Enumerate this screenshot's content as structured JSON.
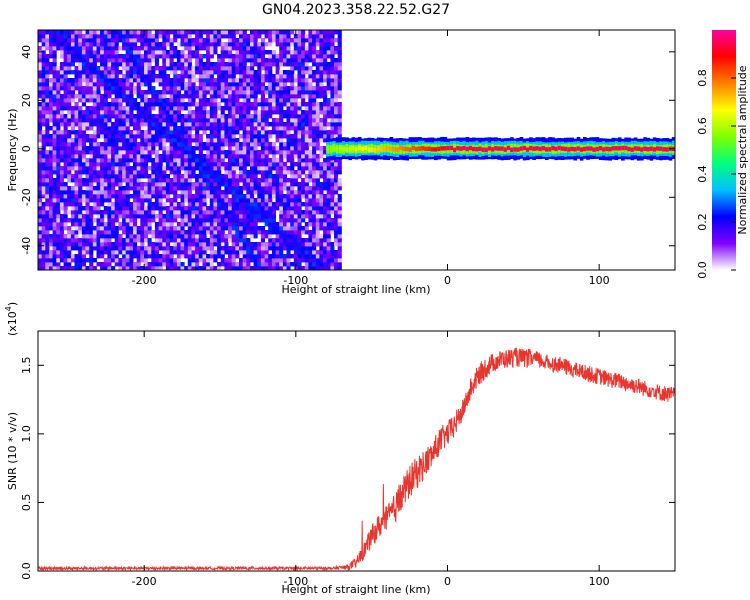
{
  "chart_data": [
    {
      "type": "heatmap",
      "title": "GN04.2023.358.22.52.G27",
      "xlabel": "Height of straight line (km)",
      "ylabel": "Frequency (Hz)",
      "xlim": [
        -270,
        150
      ],
      "ylim": [
        -50,
        49
      ],
      "xticks": [
        -200,
        -100,
        0,
        100
      ],
      "xtick_labels": [
        "-200",
        "-100",
        "0",
        "100"
      ],
      "yticks": [
        -40,
        -20,
        0,
        20,
        40
      ],
      "ytick_labels": [
        "-40",
        "-20",
        "0",
        "20",
        "40"
      ],
      "colorbar": {
        "label": "Normalized spectral amplitude",
        "range": [
          0,
          1
        ],
        "ticks": [
          0.0,
          0.2,
          0.4,
          0.6,
          0.8
        ],
        "tick_labels": [
          "0.0",
          "0.2",
          "0.4",
          "0.6",
          "0.8"
        ],
        "colors": [
          "#ffffff",
          "#8000ff",
          "#0000ff",
          "#00c0ff",
          "#00ff80",
          "#80ff00",
          "#ffff00",
          "#ff8000",
          "#ff0000",
          "#ff00a0"
        ]
      },
      "features": {
        "noise_region_x": [
          -270,
          -70
        ],
        "diagonal_tracks": [
          {
            "x": [
              -265,
              -75
            ],
            "y": [
              49,
              -55
            ]
          },
          {
            "x": [
              -220,
              -120
            ],
            "y": [
              49,
              -55
            ]
          }
        ],
        "dc_band": {
          "x": [
            -80,
            150
          ],
          "y": 0,
          "amplitude_start": 0.55,
          "amplitude_end": 0.95
        }
      }
    },
    {
      "type": "line",
      "title": "",
      "xlabel": "Height of straight line (km)",
      "ylabel": "SNR (10 * v/v)",
      "multiplier_label": "(x10",
      "multiplier_exp": "4",
      "multiplier_close": ")",
      "xlim": [
        -270,
        150
      ],
      "ylim": [
        0,
        1.75
      ],
      "xticks": [
        -200,
        -100,
        0,
        100
      ],
      "xtick_labels": [
        "-200",
        "-100",
        "0",
        "100"
      ],
      "yticks": [
        0,
        0.5,
        1.0,
        1.5
      ],
      "ytick_labels": [
        "0.0",
        "0.5",
        "1.0",
        "1.5"
      ],
      "series": [
        {
          "color": "#e8352e",
          "x": [
            -270,
            -100,
            -75,
            -65,
            -60,
            -55,
            -50,
            -45,
            -40,
            -35,
            -30,
            -25,
            -20,
            -15,
            -10,
            -5,
            0,
            5,
            10,
            15,
            20,
            25,
            30,
            35,
            40,
            45,
            50,
            55,
            60,
            65,
            70,
            75,
            80,
            85,
            90,
            95,
            100,
            105,
            110,
            115,
            120,
            125,
            130,
            135,
            140,
            145,
            150
          ],
          "y": [
            0.02,
            0.02,
            0.02,
            0.03,
            0.06,
            0.15,
            0.25,
            0.33,
            0.38,
            0.45,
            0.55,
            0.65,
            0.72,
            0.78,
            0.85,
            0.95,
            1.0,
            1.07,
            1.17,
            1.32,
            1.42,
            1.48,
            1.52,
            1.54,
            1.55,
            1.56,
            1.55,
            1.55,
            1.54,
            1.52,
            1.51,
            1.5,
            1.48,
            1.46,
            1.45,
            1.43,
            1.42,
            1.4,
            1.39,
            1.38,
            1.36,
            1.35,
            1.33,
            1.32,
            1.3,
            1.29,
            1.28
          ],
          "noise_amplitude": [
            0.01,
            0.01,
            0.01,
            0.02,
            0.04,
            0.06,
            0.08,
            0.09,
            0.1,
            0.11,
            0.12,
            0.12,
            0.12,
            0.11,
            0.1,
            0.1,
            0.09,
            0.09,
            0.08,
            0.08,
            0.08,
            0.08,
            0.07,
            0.07,
            0.07,
            0.07,
            0.07,
            0.07,
            0.06,
            0.06,
            0.06,
            0.06,
            0.06,
            0.06,
            0.06,
            0.06,
            0.06,
            0.06,
            0.06,
            0.06,
            0.06,
            0.06,
            0.06,
            0.06,
            0.06,
            0.06,
            0.06
          ]
        }
      ]
    }
  ]
}
